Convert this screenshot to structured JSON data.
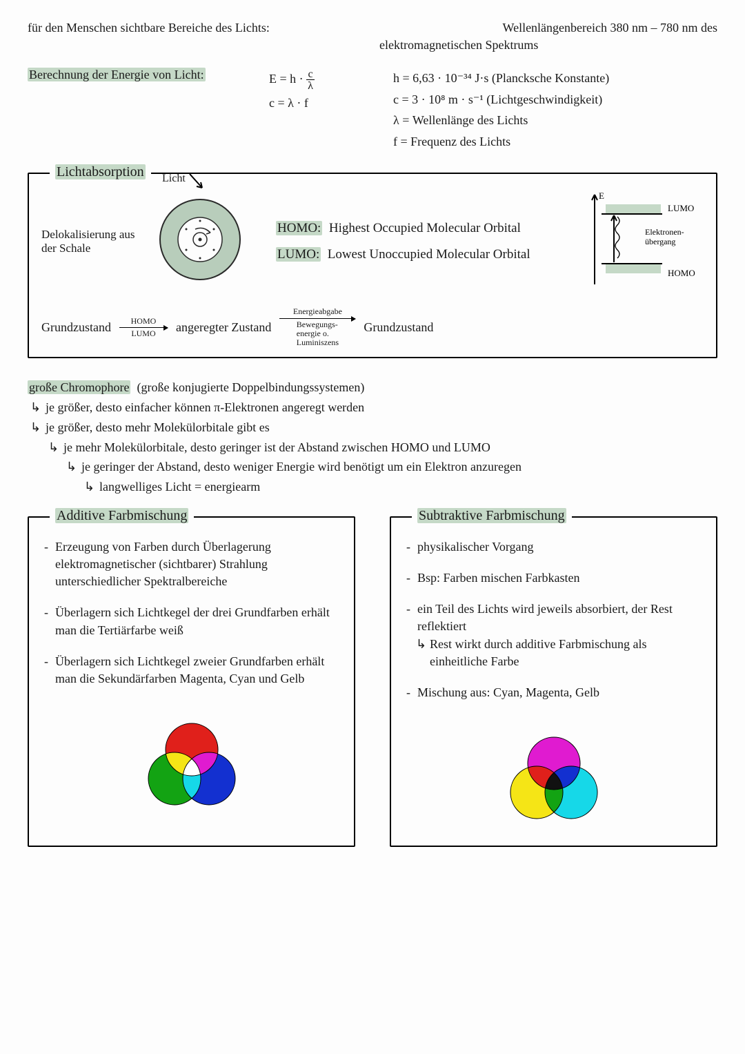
{
  "header": {
    "left": "für den Menschen sichtbare Bereiche des Lichts:",
    "right1": "Wellenlängenbereich  380 nm – 780 nm  des",
    "right2": "elektromagnetischen  Spektrums"
  },
  "energy": {
    "title": "Berechnung der Energie von Licht:",
    "formula1a": "E = h ·",
    "formula1_num": "c",
    "formula1_den": "λ",
    "formula2": "c = λ · f",
    "const_h": "h = 6,63 · 10⁻³⁴  J·s (Plancksche Konstante)",
    "const_c": "c = 3 · 10⁸  m · s⁻¹  (Lichtgeschwindigkeit)",
    "const_l": "λ = Wellenlänge des Lichts",
    "const_f": "f = Frequenz des Lichts"
  },
  "absorption": {
    "title": "Lichtabsorption",
    "licht": "Licht",
    "delok": "Delokalisierung aus der Schale",
    "homo_lbl": "HOMO:",
    "homo_def": "Highest Occupied Molecular Orbital",
    "lumo_lbl": "LUMO:",
    "lumo_def": "Lowest Unoccupied Molecular Orbital",
    "trans": {
      "g1": "Grundzustand",
      "a1_top": "HOMO",
      "a1_bot": "LUMO",
      "ang": "angeregter Zustand",
      "a2_top": "Energieabgabe",
      "a2_bot": "Bewegungs-\nenergie o.\nLuminiszens",
      "g2": "Grundzustand"
    },
    "ediag": {
      "lumo": "LUMO",
      "homo": "HOMO",
      "label": "Elektronen-\nübergang",
      "e": "E",
      "colors": {
        "band": "#c5d9c7"
      }
    },
    "atom": {
      "fill": "#b8cdbb",
      "stroke": "#2a2a2a"
    }
  },
  "chromo": {
    "l0a": "große Chromophore",
    "l0b": "(große konjugierte Doppelbindungssystemen)",
    "l1": "je größer, desto einfacher können π-Elektronen angeregt werden",
    "l2": "je größer, desto mehr Molekülorbitale gibt es",
    "l3": "je mehr Molekülorbitale, desto geringer ist der Abstand zwischen HOMO und LUMO",
    "l4": "je geringer der Abstand, desto weniger Energie wird benötigt um ein Elektron anzuregen",
    "l5": "langwelliges Licht = energiearm"
  },
  "additive": {
    "title": "Additive Farbmischung",
    "b1": "Erzeugung von Farben durch Überlagerung elektromagnetischer (sichtbarer) Strahlung unterschiedlicher Spektralbereiche",
    "b2": "Überlagern sich Lichtkegel der drei Grundfarben erhält man die Tertiärfarbe weiß",
    "b3": "Überlagern sich Lichtkegel zweier Grundfarben erhält man die Sekundärfarben Magenta, Cyan und Gelb",
    "venn": {
      "c1": "#e0201b",
      "c2": "#13a313",
      "c3": "#1330d0",
      "m12": "#f5e516",
      "m13": "#e01bd0",
      "m23": "#16d8e8",
      "mid": "#ffffff"
    }
  },
  "subtractive": {
    "title": "Subtraktive Farbmischung",
    "b1": "physikalischer Vorgang",
    "b2": "Bsp: Farben mischen Farbkasten",
    "b3": "ein Teil des Lichts wird jeweils absorbiert, der Rest reflektiert",
    "b3s": "Rest wirkt durch additive Farbmischung als einheitliche Farbe",
    "b4": "Mischung aus: Cyan, Magenta, Gelb",
    "venn": {
      "c1": "#e01bd0",
      "c2": "#f5e516",
      "c3": "#16d8e8",
      "m12": "#e0201b",
      "m13": "#1330d0",
      "m23": "#13a313",
      "mid": "#111111"
    }
  }
}
